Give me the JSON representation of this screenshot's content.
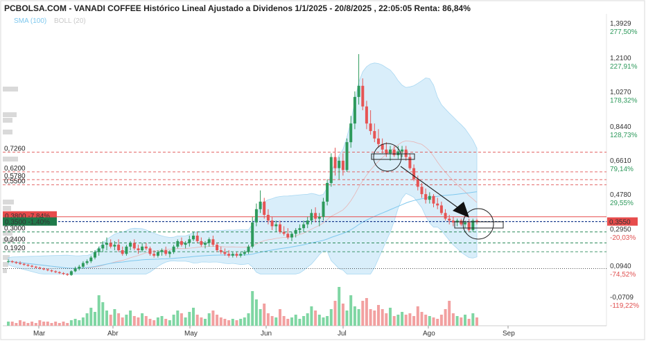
{
  "title": "PCBOLSA.COM - VANADI COFFEE Histórico Lineal Ajustado a Dividenos 1/1/2025 - 20/8/2025 , 22:05:05 Renta: 86,84%",
  "legend": [
    {
      "label": "SMA (100)",
      "color": "#7ec8ee"
    },
    {
      "label": "BOLL (20)",
      "color": "#c9c9c9"
    }
  ],
  "chart_data": {
    "type": "candlestick",
    "x_tick_labels": [
      "Mar",
      "Abr",
      "May",
      "Jun",
      "Jul",
      "Ago",
      "Sep"
    ],
    "y_tick_labels": [
      {
        "price": "1,3929",
        "pct": "277,50%"
      },
      {
        "price": "1,2100",
        "pct": "227,91%"
      },
      {
        "price": "1,0270",
        "pct": "178,32%"
      },
      {
        "price": "0,8440",
        "pct": "128,73%"
      },
      {
        "price": "0,6610",
        "pct": "79,14%"
      },
      {
        "price": "0,4780",
        "pct": "29,55%"
      },
      {
        "price": "0,2950",
        "pct": "-20,03%"
      },
      {
        "price": "0,0940",
        "pct": "-74,52%"
      },
      {
        "price": "-0,0709",
        "pct": "-119,22%"
      }
    ],
    "current_price_label": "0,3550",
    "left_badges": [
      {
        "text": "0,3800 -7,84%",
        "color": "#e74c4c"
      },
      {
        "text": "0,3500 -1,40%",
        "color": "#1f7a4a"
      }
    ],
    "levels": [
      {
        "label": "0,7260",
        "value": 0.726,
        "color": "#e05050",
        "style": "dashed"
      },
      {
        "label": "0,6200",
        "value": 0.62,
        "color": "#e05050",
        "style": "dashed"
      },
      {
        "label": "0,5780",
        "value": 0.578,
        "color": "#e05050",
        "style": "dashed"
      },
      {
        "label": "0,5500",
        "value": 0.55,
        "color": "#e05050",
        "style": "dashed"
      },
      {
        "label": "0,3000",
        "value": 0.3,
        "color": "#2a8a5a",
        "style": "dashed"
      },
      {
        "label": "0,2400",
        "value": 0.24,
        "color": "#2a8a5a",
        "style": "dashed"
      },
      {
        "label": "0,1920",
        "value": 0.192,
        "color": "#2a8a5a",
        "style": "dashed"
      }
    ],
    "ohlc": [
      [
        0.14,
        0.15,
        0.13,
        0.14
      ],
      [
        0.14,
        0.145,
        0.13,
        0.135
      ],
      [
        0.135,
        0.14,
        0.125,
        0.13
      ],
      [
        0.13,
        0.14,
        0.12,
        0.125
      ],
      [
        0.125,
        0.13,
        0.115,
        0.12
      ],
      [
        0.12,
        0.125,
        0.11,
        0.115
      ],
      [
        0.115,
        0.12,
        0.105,
        0.11
      ],
      [
        0.11,
        0.115,
        0.1,
        0.105
      ],
      [
        0.105,
        0.11,
        0.095,
        0.1
      ],
      [
        0.1,
        0.105,
        0.09,
        0.095
      ],
      [
        0.095,
        0.1,
        0.085,
        0.09
      ],
      [
        0.09,
        0.095,
        0.08,
        0.085
      ],
      [
        0.085,
        0.09,
        0.075,
        0.08
      ],
      [
        0.08,
        0.085,
        0.07,
        0.075
      ],
      [
        0.075,
        0.08,
        0.065,
        0.07
      ],
      [
        0.07,
        0.075,
        0.06,
        0.065
      ],
      [
        0.065,
        0.09,
        0.06,
        0.085
      ],
      [
        0.085,
        0.11,
        0.08,
        0.1
      ],
      [
        0.1,
        0.12,
        0.09,
        0.11
      ],
      [
        0.11,
        0.14,
        0.1,
        0.13
      ],
      [
        0.13,
        0.15,
        0.12,
        0.14
      ],
      [
        0.14,
        0.17,
        0.13,
        0.16
      ],
      [
        0.16,
        0.2,
        0.15,
        0.19
      ],
      [
        0.19,
        0.22,
        0.17,
        0.21
      ],
      [
        0.21,
        0.25,
        0.19,
        0.23
      ],
      [
        0.23,
        0.27,
        0.2,
        0.24
      ],
      [
        0.24,
        0.26,
        0.21,
        0.22
      ],
      [
        0.22,
        0.25,
        0.2,
        0.23
      ],
      [
        0.23,
        0.26,
        0.19,
        0.2
      ],
      [
        0.2,
        0.22,
        0.17,
        0.18
      ],
      [
        0.18,
        0.23,
        0.17,
        0.22
      ],
      [
        0.22,
        0.25,
        0.2,
        0.24
      ],
      [
        0.24,
        0.26,
        0.2,
        0.21
      ],
      [
        0.21,
        0.23,
        0.18,
        0.2
      ],
      [
        0.2,
        0.24,
        0.19,
        0.22
      ],
      [
        0.22,
        0.24,
        0.2,
        0.21
      ],
      [
        0.21,
        0.22,
        0.17,
        0.18
      ],
      [
        0.18,
        0.2,
        0.16,
        0.17
      ],
      [
        0.17,
        0.2,
        0.16,
        0.19
      ],
      [
        0.19,
        0.21,
        0.17,
        0.2
      ],
      [
        0.2,
        0.22,
        0.17,
        0.18
      ],
      [
        0.18,
        0.2,
        0.16,
        0.19
      ],
      [
        0.19,
        0.23,
        0.18,
        0.22
      ],
      [
        0.22,
        0.26,
        0.21,
        0.25
      ],
      [
        0.25,
        0.27,
        0.22,
        0.23
      ],
      [
        0.23,
        0.25,
        0.21,
        0.24
      ],
      [
        0.24,
        0.28,
        0.22,
        0.26
      ],
      [
        0.26,
        0.3,
        0.25,
        0.28
      ],
      [
        0.28,
        0.3,
        0.24,
        0.25
      ],
      [
        0.25,
        0.27,
        0.22,
        0.23
      ],
      [
        0.23,
        0.25,
        0.21,
        0.24
      ],
      [
        0.24,
        0.27,
        0.22,
        0.26
      ],
      [
        0.26,
        0.28,
        0.22,
        0.23
      ],
      [
        0.23,
        0.24,
        0.19,
        0.2
      ],
      [
        0.2,
        0.22,
        0.18,
        0.19
      ],
      [
        0.19,
        0.21,
        0.17,
        0.18
      ],
      [
        0.18,
        0.2,
        0.16,
        0.17
      ],
      [
        0.17,
        0.19,
        0.16,
        0.18
      ],
      [
        0.18,
        0.19,
        0.16,
        0.17
      ],
      [
        0.17,
        0.19,
        0.16,
        0.18
      ],
      [
        0.18,
        0.2,
        0.17,
        0.19
      ],
      [
        0.19,
        0.23,
        0.18,
        0.22
      ],
      [
        0.22,
        0.38,
        0.21,
        0.35
      ],
      [
        0.35,
        0.45,
        0.33,
        0.42
      ],
      [
        0.42,
        0.52,
        0.4,
        0.46
      ],
      [
        0.46,
        0.48,
        0.37,
        0.39
      ],
      [
        0.39,
        0.42,
        0.34,
        0.36
      ],
      [
        0.36,
        0.38,
        0.31,
        0.33
      ],
      [
        0.33,
        0.36,
        0.3,
        0.34
      ],
      [
        0.34,
        0.36,
        0.29,
        0.3
      ],
      [
        0.3,
        0.33,
        0.28,
        0.29
      ],
      [
        0.29,
        0.32,
        0.26,
        0.27
      ],
      [
        0.27,
        0.3,
        0.25,
        0.29
      ],
      [
        0.29,
        0.32,
        0.27,
        0.31
      ],
      [
        0.31,
        0.34,
        0.29,
        0.32
      ],
      [
        0.32,
        0.36,
        0.3,
        0.34
      ],
      [
        0.34,
        0.38,
        0.32,
        0.36
      ],
      [
        0.36,
        0.42,
        0.34,
        0.4
      ],
      [
        0.4,
        0.43,
        0.35,
        0.37
      ],
      [
        0.37,
        0.4,
        0.33,
        0.38
      ],
      [
        0.38,
        0.48,
        0.36,
        0.46
      ],
      [
        0.46,
        0.58,
        0.44,
        0.56
      ],
      [
        0.56,
        0.72,
        0.54,
        0.7
      ],
      [
        0.7,
        0.75,
        0.6,
        0.64
      ],
      [
        0.64,
        0.7,
        0.58,
        0.68
      ],
      [
        0.68,
        0.72,
        0.6,
        0.63
      ],
      [
        0.63,
        0.8,
        0.62,
        0.78
      ],
      [
        0.78,
        0.92,
        0.75,
        0.88
      ],
      [
        0.88,
        1.05,
        0.85,
        1.02
      ],
      [
        1.02,
        1.25,
        0.98,
        1.08
      ],
      [
        1.08,
        1.12,
        0.95,
        0.97
      ],
      [
        0.97,
        1.0,
        0.85,
        0.88
      ],
      [
        0.88,
        0.95,
        0.82,
        0.84
      ],
      [
        0.84,
        0.88,
        0.78,
        0.8
      ],
      [
        0.8,
        0.85,
        0.75,
        0.77
      ],
      [
        0.77,
        0.8,
        0.72,
        0.74
      ],
      [
        0.74,
        0.78,
        0.7,
        0.72
      ],
      [
        0.72,
        0.76,
        0.68,
        0.74
      ],
      [
        0.74,
        0.76,
        0.7,
        0.71
      ],
      [
        0.71,
        0.76,
        0.69,
        0.73
      ],
      [
        0.73,
        0.76,
        0.7,
        0.74
      ],
      [
        0.74,
        0.76,
        0.68,
        0.7
      ],
      [
        0.7,
        0.72,
        0.63,
        0.64
      ],
      [
        0.64,
        0.66,
        0.57,
        0.58
      ],
      [
        0.58,
        0.6,
        0.52,
        0.54
      ],
      [
        0.54,
        0.56,
        0.48,
        0.5
      ],
      [
        0.5,
        0.53,
        0.45,
        0.47
      ],
      [
        0.47,
        0.51,
        0.45,
        0.49
      ],
      [
        0.49,
        0.5,
        0.43,
        0.45
      ],
      [
        0.45,
        0.48,
        0.42,
        0.44
      ],
      [
        0.44,
        0.46,
        0.39,
        0.4
      ],
      [
        0.4,
        0.42,
        0.36,
        0.37
      ],
      [
        0.37,
        0.39,
        0.34,
        0.36
      ],
      [
        0.36,
        0.38,
        0.33,
        0.35
      ],
      [
        0.35,
        0.37,
        0.33,
        0.36
      ],
      [
        0.36,
        0.37,
        0.33,
        0.34
      ],
      [
        0.34,
        0.36,
        0.32,
        0.35
      ],
      [
        0.35,
        0.37,
        0.3,
        0.31
      ],
      [
        0.31,
        0.37,
        0.3,
        0.36
      ],
      [
        0.36,
        0.37,
        0.34,
        0.355
      ]
    ],
    "volume": [
      3,
      3,
      2,
      4,
      3,
      2,
      3,
      2,
      4,
      3,
      3,
      2,
      3,
      2,
      3,
      2,
      4,
      5,
      4,
      6,
      9,
      13,
      10,
      22,
      17,
      11,
      8,
      12,
      9,
      6,
      8,
      11,
      7,
      6,
      9,
      7,
      5,
      4,
      6,
      7,
      5,
      4,
      8,
      11,
      9,
      6,
      10,
      13,
      8,
      6,
      5,
      9,
      11,
      8,
      6,
      5,
      4,
      5,
      4,
      5,
      6,
      9,
      25,
      19,
      12,
      16,
      9,
      7,
      6,
      12,
      7,
      5,
      6,
      8,
      5,
      7,
      9,
      14,
      11,
      8,
      6,
      7,
      12,
      18,
      28,
      16,
      11,
      22,
      14,
      12,
      18,
      20,
      12,
      11,
      15,
      12,
      9,
      13,
      7,
      8,
      10,
      8,
      9,
      7,
      14,
      10,
      8,
      7,
      6,
      5,
      8,
      12,
      18,
      9,
      7,
      6,
      8,
      5,
      9,
      6,
      30,
      10
    ]
  },
  "annotation": {
    "arrow": "from 2nd circle to 3rd circle"
  }
}
